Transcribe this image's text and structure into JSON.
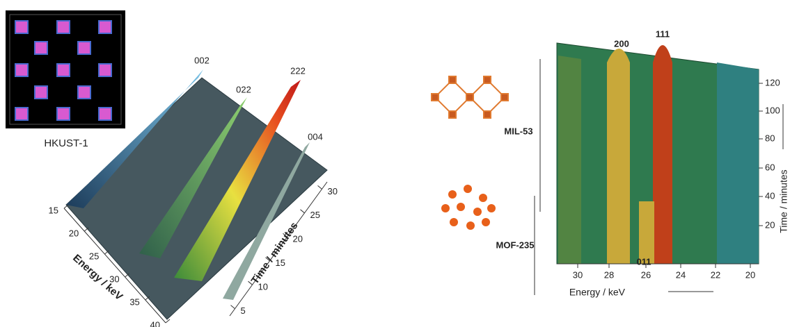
{
  "left_panel": {
    "inset_label": "HKUST-1",
    "peaks": [
      "002",
      "022",
      "222",
      "004"
    ],
    "energy_axis": {
      "label": "Energy / keV",
      "ticks": [
        "15",
        "20",
        "25",
        "30",
        "35",
        "40"
      ]
    },
    "time_axis": {
      "label": "Time / minutes",
      "ticks": [
        "5",
        "10",
        "15",
        "20",
        "25",
        "30"
      ]
    }
  },
  "right_panel": {
    "peaks": [
      "200",
      "111",
      "011"
    ],
    "phases": [
      "MIL-53",
      "MOF-235"
    ],
    "energy_axis": {
      "label": "Energy / keV",
      "ticks": [
        "30",
        "28",
        "26",
        "24",
        "22",
        "20"
      ]
    },
    "time_axis": {
      "label": "Time / minutes",
      "ticks": [
        "120",
        "100",
        "80",
        "60",
        "40",
        "20"
      ]
    }
  }
}
